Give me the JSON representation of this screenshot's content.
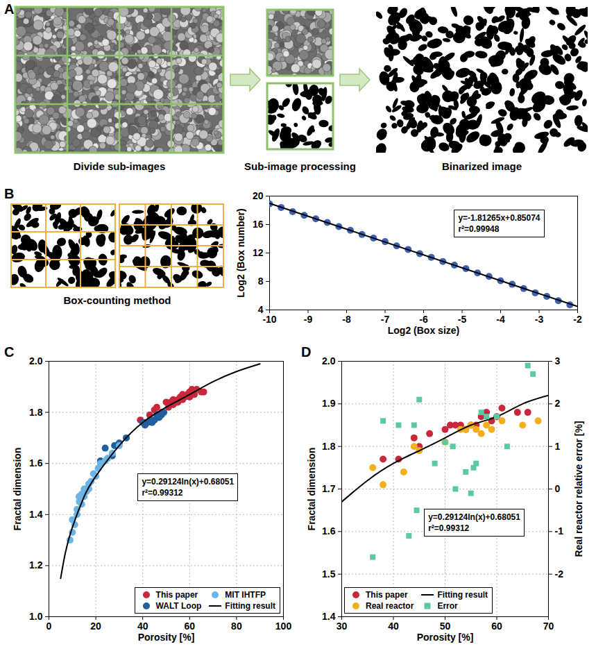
{
  "chart_data": [
    {
      "panel": "A",
      "type": "diagram",
      "labels": [
        "Divide sub-images",
        "Sub-image processing",
        "Binarized image"
      ]
    },
    {
      "panel": "B",
      "type": "scatter",
      "diagram_label": "Box-counting method",
      "x_label": "Log2 (Box size)",
      "y_label": "Log2 (Box number)",
      "xlim": [
        -10,
        -2
      ],
      "ylim": [
        4,
        20
      ],
      "xticks": [
        -10,
        -9,
        -8,
        -7,
        -6,
        -5,
        -4,
        -3,
        -2
      ],
      "yticks": [
        4,
        8,
        12,
        16,
        20
      ],
      "annotations": [
        "y=-1.81265x+0.85074",
        "r²=0.99948"
      ],
      "series": [
        {
          "color": "#3e62b0",
          "marker": "circle",
          "x": [
            -10,
            -9.7,
            -9.4,
            -9.1,
            -8.8,
            -8.5,
            -8.2,
            -7.9,
            -7.6,
            -7.3,
            -7.0,
            -6.7,
            -6.4,
            -6.1,
            -5.8,
            -5.5,
            -5.2,
            -4.9,
            -4.6,
            -4.3,
            -4.0,
            -3.7,
            -3.4,
            -3.1,
            -2.8,
            -2.5,
            -2.2
          ],
          "values": [
            18.9,
            18.4,
            17.8,
            17.3,
            16.8,
            16.3,
            15.7,
            15.2,
            14.6,
            14.1,
            13.6,
            13.0,
            12.5,
            11.9,
            11.4,
            10.8,
            10.3,
            9.8,
            9.2,
            8.7,
            8.1,
            7.6,
            7.0,
            6.4,
            5.9,
            5.3,
            4.7
          ]
        },
        {
          "type": "line",
          "color": "#000000",
          "line_style": "solid",
          "x": [
            -10,
            -2
          ],
          "values": [
            18.98,
            4.48
          ]
        }
      ]
    },
    {
      "panel": "C",
      "type": "scatter",
      "x_label": "Porosity [%]",
      "y_label": "Fractal dimension",
      "xlim": [
        0,
        100
      ],
      "ylim": [
        1,
        2
      ],
      "xticks": [
        0,
        20,
        40,
        60,
        80,
        100
      ],
      "yticks": [
        {
          "value": 1,
          "label": "1.0"
        },
        1.2,
        1.4,
        1.6,
        1.8,
        {
          "value": 2,
          "label": "2.0"
        }
      ],
      "grid": true,
      "legend": "lower right",
      "annotations": [
        "y=0.29124ln(x)+0.68051",
        "r²=0.99312"
      ],
      "series": [
        {
          "name": "This paper",
          "color": "#c8283c",
          "marker": "circle",
          "x": [
            39,
            41,
            43,
            45,
            46,
            48,
            50,
            51,
            52,
            53,
            53,
            54,
            55,
            55,
            56,
            57,
            57,
            58,
            59,
            60,
            60,
            61,
            62,
            63,
            65,
            66
          ],
          "values": [
            1.77,
            1.76,
            1.79,
            1.81,
            1.82,
            1.8,
            1.84,
            1.82,
            1.84,
            1.85,
            1.83,
            1.84,
            1.85,
            1.84,
            1.86,
            1.85,
            1.87,
            1.86,
            1.87,
            1.86,
            1.88,
            1.89,
            1.87,
            1.89,
            1.88,
            1.88
          ]
        },
        {
          "name": "WALT Loop",
          "color": "#1f5f9e",
          "marker": "circle",
          "x": [
            13,
            16,
            22,
            24,
            27,
            28,
            30,
            33,
            40,
            41,
            42,
            43,
            44,
            45,
            46,
            47,
            48,
            49
          ],
          "values": [
            1.47,
            1.5,
            1.61,
            1.66,
            1.63,
            1.67,
            1.68,
            1.7,
            1.76,
            1.75,
            1.76,
            1.77,
            1.76,
            1.77,
            1.79,
            1.78,
            1.79,
            1.8
          ]
        },
        {
          "name": "MIT IHTFP",
          "color": "#6cb4e4",
          "marker": "circle",
          "x": [
            9,
            10,
            10,
            11,
            12,
            12,
            13,
            13,
            14,
            14,
            15,
            15,
            16,
            17,
            17,
            18,
            19,
            20,
            21,
            22,
            24,
            25,
            27,
            30
          ],
          "values": [
            1.3,
            1.33,
            1.38,
            1.36,
            1.4,
            1.42,
            1.45,
            1.47,
            1.44,
            1.48,
            1.47,
            1.5,
            1.49,
            1.52,
            1.5,
            1.53,
            1.56,
            1.55,
            1.58,
            1.6,
            1.61,
            1.62,
            1.64,
            1.67
          ]
        },
        {
          "name": "Fitting result",
          "type": "line",
          "color": "#000000",
          "line_style": "solid",
          "x": [
            5,
            7,
            10,
            15,
            20,
            30,
            40,
            50,
            60,
            70,
            80,
            90
          ],
          "values": [
            1.15,
            1.25,
            1.35,
            1.47,
            1.55,
            1.67,
            1.76,
            1.82,
            1.87,
            1.92,
            1.96,
            1.99
          ]
        }
      ]
    },
    {
      "panel": "D",
      "type": "scatter",
      "x_label": "Porosity [%]",
      "y_label": "Fractal dimension",
      "y2_label": "Real reactor relative error [%]",
      "xlim": [
        30,
        70
      ],
      "ylim": [
        1.4,
        2
      ],
      "xticks": [
        30,
        40,
        50,
        60,
        70
      ],
      "yticks": [
        1.4,
        1.5,
        1.6,
        1.7,
        1.8,
        1.9,
        {
          "value": 2,
          "label": "2.0"
        }
      ],
      "y2lim": [
        -3,
        3
      ],
      "y2ticks": [
        -2,
        -1,
        0,
        1,
        2,
        3
      ],
      "grid": true,
      "legend": "lower left",
      "annotations": [
        "y=0.29124ln(x)+0.68051",
        "r²=0.99312"
      ],
      "series": [
        {
          "name": "This paper",
          "color": "#c8283c",
          "marker": "circle",
          "x": [
            38,
            41,
            44,
            45,
            47,
            50,
            51,
            52,
            53,
            54,
            55,
            56,
            57,
            58,
            59,
            60,
            61,
            64,
            66
          ],
          "values": [
            1.77,
            1.77,
            1.82,
            1.8,
            1.83,
            1.84,
            1.85,
            1.85,
            1.85,
            1.84,
            1.85,
            1.85,
            1.87,
            1.88,
            1.86,
            1.87,
            1.89,
            1.88,
            1.88
          ]
        },
        {
          "name": "Real reactor",
          "color": "#f2b01e",
          "marker": "circle",
          "x": [
            36,
            38,
            42,
            44,
            45,
            50,
            53,
            54,
            55,
            56,
            57,
            58,
            59,
            61,
            65,
            68
          ],
          "values": [
            1.75,
            1.71,
            1.74,
            1.8,
            1.79,
            1.81,
            1.84,
            1.84,
            1.85,
            1.84,
            1.83,
            1.85,
            1.84,
            1.86,
            1.85,
            1.86
          ]
        },
        {
          "name": "Fitting result",
          "type": "line",
          "color": "#000000",
          "line_style": "solid",
          "x": [
            30,
            35,
            40,
            45,
            50,
            55,
            60,
            65,
            70
          ],
          "values": [
            1.67,
            1.72,
            1.76,
            1.79,
            1.82,
            1.85,
            1.87,
            1.9,
            1.92
          ]
        },
        {
          "name": "Error",
          "axis": "y2",
          "color": "#5dc9a0",
          "marker": "square",
          "x": [
            36,
            38,
            41,
            43,
            44,
            44.5,
            45,
            48,
            50,
            51.5,
            52,
            54,
            55,
            55.5,
            56,
            57,
            58,
            60,
            62,
            66,
            67
          ],
          "values": [
            -1.6,
            1.6,
            1.5,
            -1.1,
            1.5,
            -0.5,
            2.1,
            0.6,
            1.1,
            1.0,
            0.0,
            0.4,
            -0.1,
            0.5,
            0.6,
            1.8,
            1.7,
            1.7,
            1.0,
            2.9,
            2.7
          ]
        }
      ]
    }
  ]
}
